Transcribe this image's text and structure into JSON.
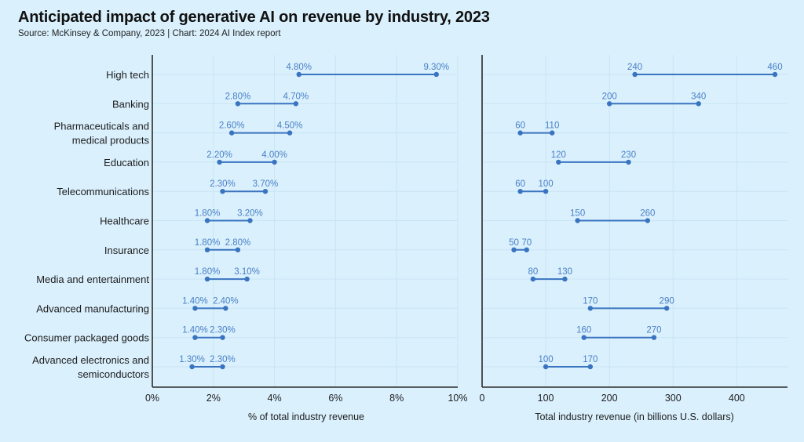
{
  "header": {
    "title": "Anticipated impact of generative AI on revenue by industry, 2023",
    "subtitle": "Source: McKinsey & Company, 2023 | Chart: 2024 AI Index report"
  },
  "colors": {
    "background": "#daf0fd",
    "series": "#3a74c0",
    "value_label": "#4a80c6",
    "axis": "#2b2b2b",
    "grid": "#c9e4f4"
  },
  "chart_data": [
    {
      "type": "dumbbell",
      "title": "",
      "xlabel": "% of total industry revenue",
      "ylabel": "",
      "xlim": [
        0,
        10
      ],
      "xticks": [
        0,
        2,
        4,
        6,
        8,
        10
      ],
      "xtick_labels": [
        "0%",
        "2%",
        "4%",
        "6%",
        "8%",
        "10%"
      ],
      "grid": true,
      "categories": [
        [
          "High tech"
        ],
        [
          "Banking"
        ],
        [
          "Pharmaceuticals and",
          "medical products"
        ],
        [
          "Education"
        ],
        [
          "Telecommunications"
        ],
        [
          "Healthcare"
        ],
        [
          "Insurance"
        ],
        [
          "Media and entertainment"
        ],
        [
          "Advanced manufacturing"
        ],
        [
          "Consumer packaged goods"
        ],
        [
          "Advanced electronics and",
          "semiconductors"
        ]
      ],
      "series": [
        {
          "name": "low",
          "values": [
            4.8,
            2.8,
            2.6,
            2.2,
            2.3,
            1.8,
            1.8,
            1.8,
            1.4,
            1.4,
            1.3
          ],
          "labels": [
            "4.80%",
            "2.80%",
            "2.60%",
            "2.20%",
            "2.30%",
            "1.80%",
            "1.80%",
            "1.80%",
            "1.40%",
            "1.40%",
            "1.30%"
          ]
        },
        {
          "name": "high",
          "values": [
            9.3,
            4.7,
            4.5,
            4.0,
            3.7,
            3.2,
            2.8,
            3.1,
            2.4,
            2.3,
            2.3
          ],
          "labels": [
            "9.30%",
            "4.70%",
            "4.50%",
            "4.00%",
            "3.70%",
            "3.20%",
            "2.80%",
            "3.10%",
            "2.40%",
            "2.30%",
            "2.30%"
          ]
        }
      ]
    },
    {
      "type": "dumbbell",
      "title": "",
      "xlabel": "Total industry revenue (in billions U.S. dollars)",
      "ylabel": "",
      "xlim": [
        0,
        480
      ],
      "xticks": [
        0,
        100,
        200,
        300,
        400
      ],
      "xtick_labels": [
        "0",
        "100",
        "200",
        "300",
        "400"
      ],
      "grid": true,
      "series": [
        {
          "name": "low",
          "values": [
            240,
            200,
            60,
            120,
            60,
            150,
            50,
            80,
            170,
            160,
            100
          ],
          "labels": [
            "240",
            "200",
            "60",
            "120",
            "60",
            "150",
            "50",
            "80",
            "170",
            "160",
            "100"
          ]
        },
        {
          "name": "high",
          "values": [
            460,
            340,
            110,
            230,
            100,
            260,
            70,
            130,
            290,
            270,
            170
          ],
          "labels": [
            "460",
            "340",
            "110",
            "230",
            "100",
            "260",
            "70",
            "130",
            "290",
            "270",
            "170"
          ]
        }
      ]
    }
  ]
}
